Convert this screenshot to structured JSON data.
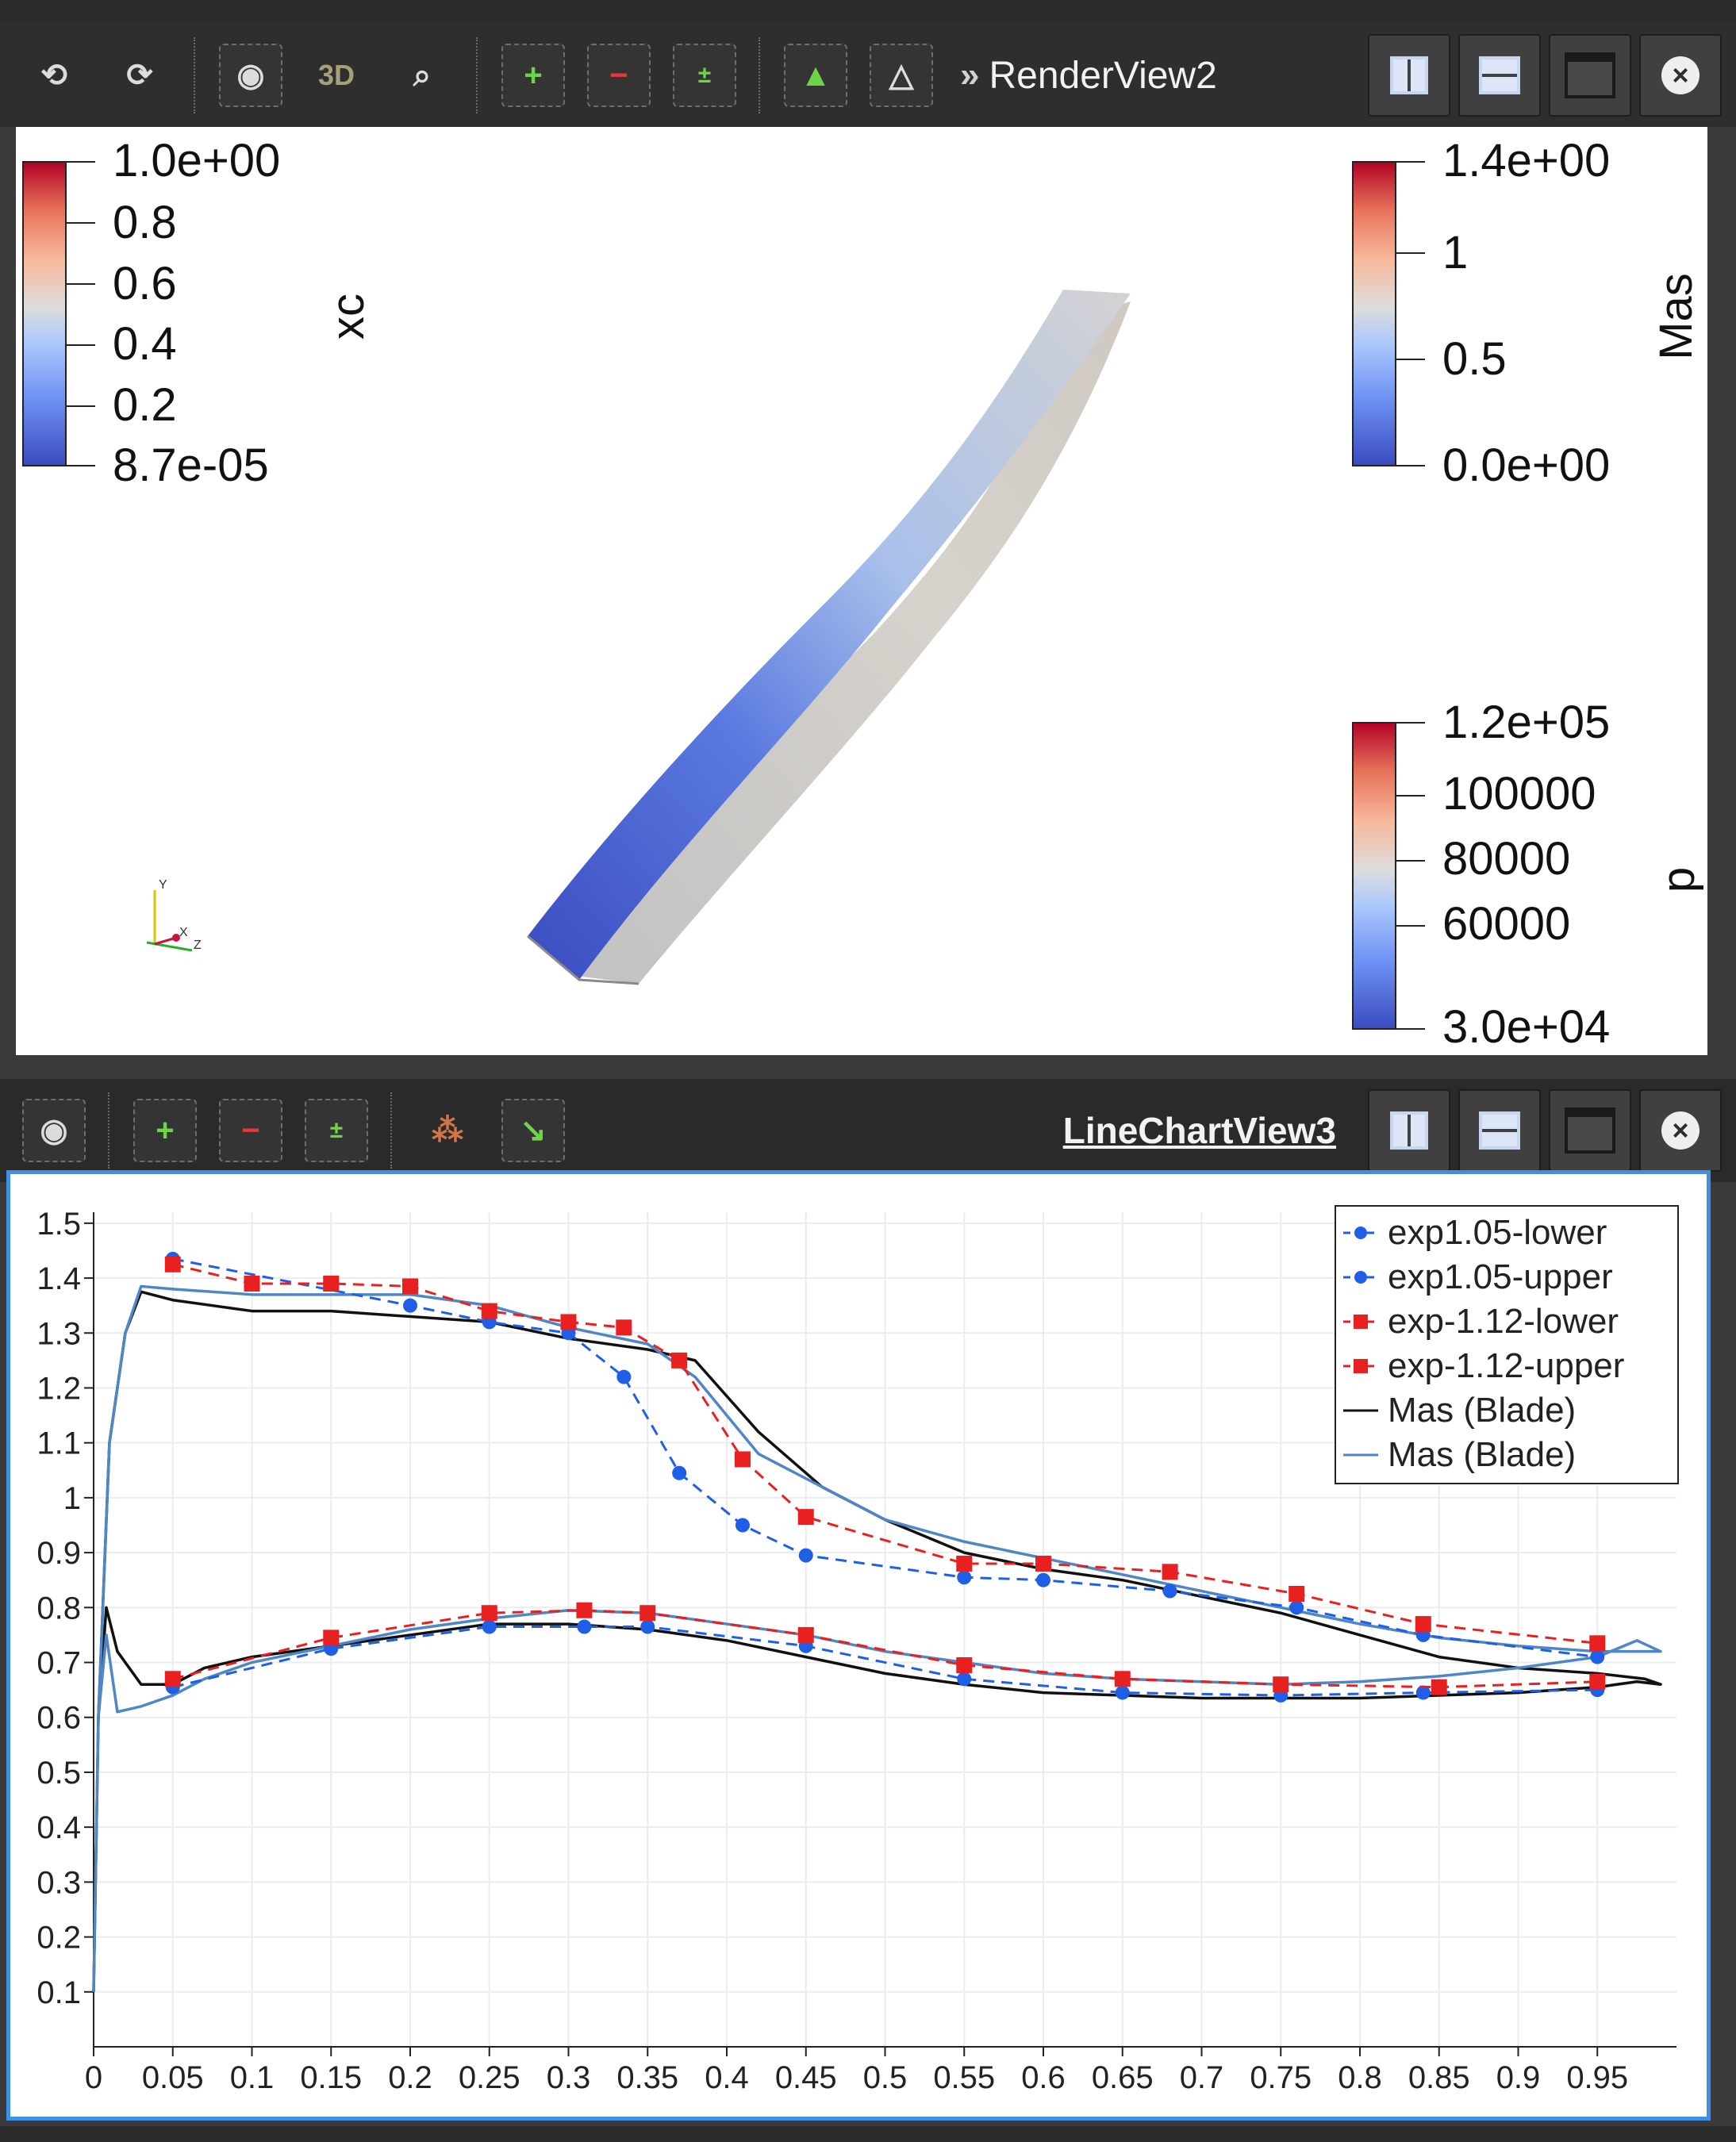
{
  "render_toolbar": {
    "title": "RenderView2",
    "tools": [
      "reset-camera-icon",
      "redo-camera-icon",
      "screenshot-icon",
      "3D",
      "zoom-to-box-icon",
      "select-cells-icon",
      "subtract-selection-icon",
      "toggle-selection-icon",
      "select-points-icon",
      "interactive-select-icon"
    ],
    "three_d_label": "3D"
  },
  "render_view": {
    "colorbars": [
      {
        "title": "xc",
        "labels": [
          "1.0e+00",
          "0.8",
          "0.6",
          "0.4",
          "0.2",
          "8.7e-05"
        ]
      },
      {
        "title": "Mas",
        "labels": [
          "1.4e+00",
          "1",
          "0.5",
          "0.0e+00"
        ]
      },
      {
        "title": "p",
        "labels": [
          "1.2e+05",
          "100000",
          "80000",
          "60000",
          "3.0e+04"
        ]
      }
    ],
    "axes_labels": [
      "Y",
      "X",
      "Z"
    ],
    "colors": {
      "low": "#3b4cc0",
      "mid": "#dddddd",
      "high": "#b40426"
    }
  },
  "chart_toolbar": {
    "title": "LineChartView3",
    "tools": [
      "screenshot-icon",
      "select-icon",
      "subtract-selection-icon",
      "toggle-selection-icon",
      "select-points-icon",
      "interactive-select-icon"
    ]
  },
  "chart_data": {
    "type": "line",
    "xlim": [
      0,
      1.0
    ],
    "ylim": [
      0,
      1.52
    ],
    "xticks": [
      "0",
      "0.05",
      "0.1",
      "0.15",
      "0.2",
      "0.25",
      "0.3",
      "0.35",
      "0.4",
      "0.45",
      "0.5",
      "0.55",
      "0.6",
      "0.65",
      "0.7",
      "0.75",
      "0.8",
      "0.85",
      "0.9",
      "0.95"
    ],
    "yticks": [
      "0.1",
      "0.2",
      "0.3",
      "0.4",
      "0.5",
      "0.6",
      "0.7",
      "0.8",
      "0.9",
      "1",
      "1.1",
      "1.2",
      "1.3",
      "1.4",
      "1.5"
    ],
    "grid": true,
    "legend_position": "top-right",
    "series": [
      {
        "name": "exp1.05-lower",
        "color": "#1f5fe8",
        "dash": true,
        "marker": "circle",
        "x": [
          0.05,
          0.15,
          0.25,
          0.31,
          0.35,
          0.45,
          0.55,
          0.65,
          0.75,
          0.84,
          0.95
        ],
        "y": [
          0.655,
          0.725,
          0.765,
          0.765,
          0.765,
          0.73,
          0.67,
          0.645,
          0.64,
          0.645,
          0.65
        ]
      },
      {
        "name": "exp1.05-upper",
        "color": "#1f5fe8",
        "dash": true,
        "marker": "circle",
        "x": [
          0.05,
          0.2,
          0.25,
          0.3,
          0.335,
          0.37,
          0.41,
          0.45,
          0.55,
          0.6,
          0.68,
          0.76,
          0.84,
          0.95
        ],
        "y": [
          1.435,
          1.35,
          1.32,
          1.3,
          1.22,
          1.045,
          0.95,
          0.895,
          0.855,
          0.85,
          0.83,
          0.8,
          0.75,
          0.71
        ]
      },
      {
        "name": "exp-1.12-lower",
        "color": "#e82020",
        "dash": true,
        "marker": "square",
        "x": [
          0.05,
          0.15,
          0.25,
          0.31,
          0.35,
          0.45,
          0.55,
          0.65,
          0.75,
          0.85,
          0.95
        ],
        "y": [
          0.67,
          0.745,
          0.79,
          0.795,
          0.79,
          0.75,
          0.695,
          0.67,
          0.66,
          0.655,
          0.665
        ]
      },
      {
        "name": "exp-1.12-upper",
        "color": "#e82020",
        "dash": true,
        "marker": "square",
        "x": [
          0.05,
          0.1,
          0.15,
          0.2,
          0.25,
          0.3,
          0.335,
          0.37,
          0.41,
          0.45,
          0.55,
          0.6,
          0.68,
          0.76,
          0.84,
          0.95
        ],
        "y": [
          1.425,
          1.39,
          1.39,
          1.385,
          1.34,
          1.32,
          1.31,
          1.25,
          1.07,
          0.965,
          0.88,
          0.88,
          0.865,
          0.825,
          0.77,
          0.735
        ]
      },
      {
        "name": "Mas (Blade)",
        "color": "#111111",
        "dash": false,
        "marker": "none",
        "x": [
          0.0,
          0.003,
          0.01,
          0.02,
          0.03,
          0.05,
          0.1,
          0.15,
          0.2,
          0.25,
          0.3,
          0.35,
          0.38,
          0.42,
          0.46,
          0.5,
          0.55,
          0.6,
          0.65,
          0.7,
          0.75,
          0.8,
          0.85,
          0.9,
          0.95,
          0.98,
          0.99,
          0.975,
          0.95,
          0.9,
          0.85,
          0.8,
          0.75,
          0.7,
          0.65,
          0.6,
          0.55,
          0.5,
          0.45,
          0.4,
          0.35,
          0.3,
          0.25,
          0.2,
          0.15,
          0.1,
          0.07,
          0.05,
          0.03,
          0.015,
          0.008,
          0.003
        ],
        "y": [
          0.1,
          0.6,
          1.1,
          1.3,
          1.375,
          1.36,
          1.34,
          1.34,
          1.33,
          1.32,
          1.29,
          1.27,
          1.25,
          1.12,
          1.02,
          0.96,
          0.9,
          0.87,
          0.85,
          0.82,
          0.79,
          0.75,
          0.71,
          0.69,
          0.68,
          0.67,
          0.66,
          0.665,
          0.655,
          0.645,
          0.64,
          0.635,
          0.635,
          0.635,
          0.64,
          0.645,
          0.66,
          0.68,
          0.71,
          0.74,
          0.76,
          0.77,
          0.77,
          0.75,
          0.73,
          0.71,
          0.69,
          0.66,
          0.66,
          0.72,
          0.8,
          0.6
        ]
      },
      {
        "name": "Mas (Blade)",
        "color": "#4f86c6",
        "dash": false,
        "marker": "none",
        "x": [
          0.0,
          0.003,
          0.01,
          0.02,
          0.03,
          0.05,
          0.1,
          0.15,
          0.2,
          0.25,
          0.3,
          0.35,
          0.38,
          0.42,
          0.46,
          0.5,
          0.55,
          0.6,
          0.65,
          0.7,
          0.75,
          0.8,
          0.85,
          0.9,
          0.95,
          0.98,
          0.99,
          0.975,
          0.95,
          0.9,
          0.85,
          0.8,
          0.75,
          0.7,
          0.65,
          0.6,
          0.55,
          0.5,
          0.45,
          0.4,
          0.35,
          0.3,
          0.25,
          0.2,
          0.15,
          0.1,
          0.07,
          0.05,
          0.03,
          0.015,
          0.008,
          0.003
        ],
        "y": [
          0.1,
          0.6,
          1.1,
          1.3,
          1.385,
          1.38,
          1.37,
          1.37,
          1.37,
          1.35,
          1.31,
          1.28,
          1.22,
          1.08,
          1.02,
          0.96,
          0.92,
          0.89,
          0.86,
          0.83,
          0.8,
          0.77,
          0.745,
          0.73,
          0.72,
          0.72,
          0.72,
          0.74,
          0.71,
          0.69,
          0.675,
          0.665,
          0.66,
          0.665,
          0.67,
          0.68,
          0.7,
          0.72,
          0.75,
          0.77,
          0.79,
          0.795,
          0.78,
          0.76,
          0.73,
          0.7,
          0.67,
          0.64,
          0.62,
          0.61,
          0.75,
          0.6
        ]
      }
    ]
  }
}
